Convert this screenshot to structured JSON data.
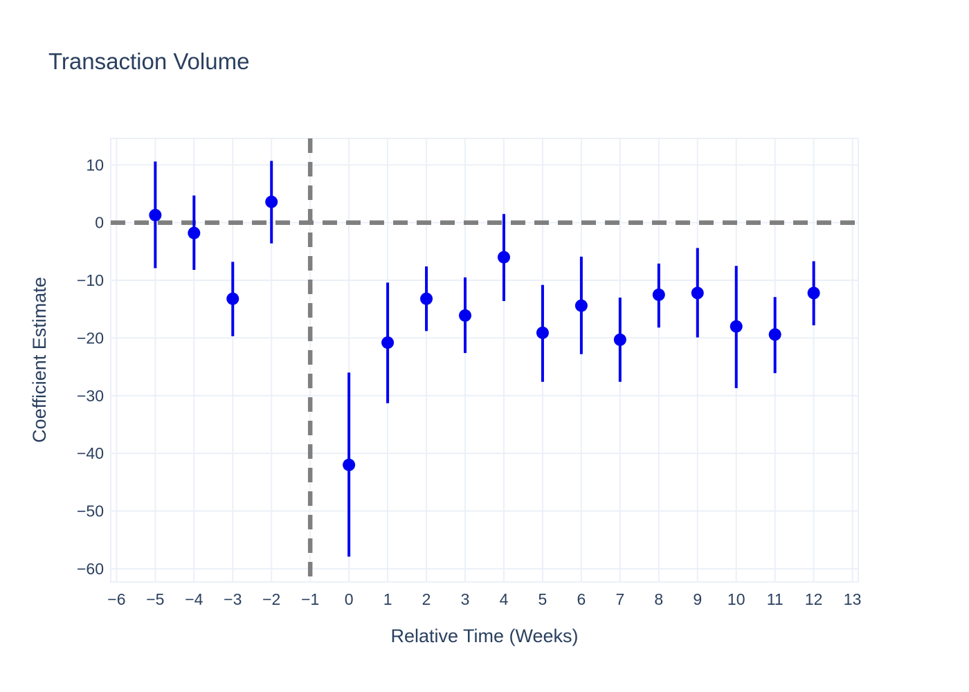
{
  "page": {
    "background": "#ffffff"
  },
  "colors": {
    "text": "#2a3f5f",
    "grid": "#ebf0f8",
    "frame": "#ebf0f8",
    "marker": "#0000f0",
    "error_bar": "#0000f0",
    "reference": "#7f7f7f",
    "background": "#ffffff"
  },
  "chart_data": {
    "type": "scatter",
    "variant": "event_study_coefficients_with_confidence_intervals",
    "title": "Transaction Volume",
    "xlabel": "Relative Time (Weeks)",
    "ylabel": "Coefficient Estimate",
    "x_ticks": [
      -6,
      -5,
      -4,
      -3,
      -2,
      -1,
      0,
      1,
      2,
      3,
      4,
      5,
      6,
      7,
      8,
      9,
      10,
      11,
      12,
      13
    ],
    "y_ticks": [
      10,
      0,
      -10,
      -20,
      -30,
      -40,
      -50,
      -60
    ],
    "xlim": [
      -6.15,
      13.15
    ],
    "ylim": [
      -62.3,
      14.6
    ],
    "grid": true,
    "legend": false,
    "reference_lines": [
      {
        "orientation": "horizontal",
        "value": 0,
        "style": "dashed",
        "color": "#7f7f7f"
      },
      {
        "orientation": "vertical",
        "value": -1,
        "style": "dashed",
        "color": "#7f7f7f"
      }
    ],
    "series": [
      {
        "name": "Coefficient Estimate",
        "marker_color": "#0000f0",
        "points": [
          {
            "x": -5,
            "y": 1.3,
            "ci_low": -7.9,
            "ci_high": 10.6
          },
          {
            "x": -4,
            "y": -1.8,
            "ci_low": -8.2,
            "ci_high": 4.7
          },
          {
            "x": -3,
            "y": -13.2,
            "ci_low": -19.7,
            "ci_high": -6.8
          },
          {
            "x": -2,
            "y": 3.6,
            "ci_low": -3.6,
            "ci_high": 10.7
          },
          {
            "x": 0,
            "y": -42.0,
            "ci_low": -57.9,
            "ci_high": -26.0
          },
          {
            "x": 1,
            "y": -20.8,
            "ci_low": -31.3,
            "ci_high": -10.4
          },
          {
            "x": 2,
            "y": -13.2,
            "ci_low": -18.8,
            "ci_high": -7.6
          },
          {
            "x": 3,
            "y": -16.1,
            "ci_low": -22.6,
            "ci_high": -9.5
          },
          {
            "x": 4,
            "y": -6.0,
            "ci_low": -13.6,
            "ci_high": 1.5
          },
          {
            "x": 5,
            "y": -19.1,
            "ci_low": -27.6,
            "ci_high": -10.8
          },
          {
            "x": 6,
            "y": -14.4,
            "ci_low": -22.8,
            "ci_high": -5.9
          },
          {
            "x": 7,
            "y": -20.3,
            "ci_low": -27.6,
            "ci_high": -13.0
          },
          {
            "x": 8,
            "y": -12.5,
            "ci_low": -18.2,
            "ci_high": -7.1
          },
          {
            "x": 9,
            "y": -12.2,
            "ci_low": -19.9,
            "ci_high": -4.4
          },
          {
            "x": 10,
            "y": -18.0,
            "ci_low": -28.7,
            "ci_high": -7.5
          },
          {
            "x": 11,
            "y": -19.4,
            "ci_low": -26.1,
            "ci_high": -12.9
          },
          {
            "x": 12,
            "y": -12.2,
            "ci_low": -17.8,
            "ci_high": -6.7
          }
        ]
      }
    ]
  }
}
